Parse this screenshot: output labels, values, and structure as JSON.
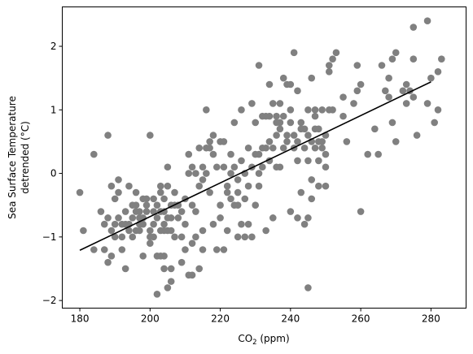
{
  "chart_data": {
    "type": "scatter",
    "title": "",
    "xlabel": "CO",
    "xlabel_sub": "2",
    "xlabel_suffix": " (ppm)",
    "ylabel_line1": "Sea Surface Temperature",
    "ylabel_line2": "detrended (°C)",
    "xlim": [
      175,
      290
    ],
    "ylim": [
      -2.12,
      2.62
    ],
    "xticks": [
      180,
      200,
      220,
      240,
      260,
      280
    ],
    "yticks": [
      -2,
      -1,
      0,
      1,
      2
    ],
    "grid": false,
    "point_color": "#808080",
    "line_color": "#000000",
    "trend_line": {
      "x": [
        180,
        280
      ],
      "y": [
        -1.21,
        1.44
      ]
    },
    "points": [
      [
        180,
        -0.3
      ],
      [
        181,
        -0.9
      ],
      [
        184,
        0.3
      ],
      [
        184,
        -1.2
      ],
      [
        186,
        -0.6
      ],
      [
        187,
        -0.8
      ],
      [
        187,
        -1.2
      ],
      [
        188,
        -0.7
      ],
      [
        188,
        -1.4
      ],
      [
        188,
        0.6
      ],
      [
        189,
        -0.9
      ],
      [
        189,
        -0.2
      ],
      [
        189,
        -1.3
      ],
      [
        190,
        -1.0
      ],
      [
        190,
        -0.4
      ],
      [
        190,
        -0.8
      ],
      [
        191,
        -0.1
      ],
      [
        191,
        -0.7
      ],
      [
        191,
        -0.3
      ],
      [
        192,
        -0.8
      ],
      [
        192,
        -1.0
      ],
      [
        192,
        -1.2
      ],
      [
        193,
        -0.6
      ],
      [
        193,
        -1.5
      ],
      [
        193,
        -0.8
      ],
      [
        194,
        -0.9
      ],
      [
        194,
        -0.8
      ],
      [
        194,
        -0.2
      ],
      [
        195,
        -0.7
      ],
      [
        195,
        -0.5
      ],
      [
        195,
        -1.0
      ],
      [
        196,
        -0.5
      ],
      [
        196,
        -0.6
      ],
      [
        196,
        -0.9
      ],
      [
        196,
        -0.3
      ],
      [
        197,
        -0.8
      ],
      [
        197,
        -0.6
      ],
      [
        197,
        -0.9
      ],
      [
        197,
        -0.7
      ],
      [
        198,
        -1.3
      ],
      [
        198,
        -0.4
      ],
      [
        198,
        -0.8
      ],
      [
        198,
        -0.7
      ],
      [
        199,
        -0.5
      ],
      [
        199,
        -0.6
      ],
      [
        199,
        -0.4
      ],
      [
        200,
        -1.0
      ],
      [
        200,
        -1.1
      ],
      [
        200,
        0.6
      ],
      [
        200,
        -0.9
      ],
      [
        201,
        -1.0
      ],
      [
        201,
        -0.8
      ],
      [
        201,
        -0.4
      ],
      [
        201,
        -0.6
      ],
      [
        202,
        -1.9
      ],
      [
        202,
        -1.3
      ],
      [
        202,
        -0.7
      ],
      [
        202,
        -0.5
      ],
      [
        203,
        -1.3
      ],
      [
        203,
        -0.3
      ],
      [
        203,
        -0.9
      ],
      [
        203,
        -0.2
      ],
      [
        203,
        -0.6
      ],
      [
        204,
        -1.5
      ],
      [
        204,
        -1.3
      ],
      [
        204,
        -0.8
      ],
      [
        204,
        -0.9
      ],
      [
        204,
        -0.4
      ],
      [
        204,
        -0.6
      ],
      [
        205,
        0.1
      ],
      [
        205,
        -1.8
      ],
      [
        205,
        -0.7
      ],
      [
        205,
        -0.9
      ],
      [
        205,
        -0.2
      ],
      [
        206,
        -1.7
      ],
      [
        206,
        -1.5
      ],
      [
        206,
        -0.7
      ],
      [
        206,
        -0.9
      ],
      [
        206,
        -0.5
      ],
      [
        207,
        -1.0
      ],
      [
        207,
        -0.5
      ],
      [
        207,
        -0.3
      ],
      [
        208,
        -0.5
      ],
      [
        208,
        -0.7
      ],
      [
        209,
        -1.0
      ],
      [
        209,
        -1.4
      ],
      [
        209,
        -0.6
      ],
      [
        210,
        -1.2
      ],
      [
        210,
        -0.8
      ],
      [
        210,
        -0.4
      ],
      [
        211,
        -1.6
      ],
      [
        211,
        0.0
      ],
      [
        211,
        0.3
      ],
      [
        212,
        -1.6
      ],
      [
        212,
        -1.1
      ],
      [
        212,
        -0.5
      ],
      [
        212,
        0.1
      ],
      [
        213,
        -1.0
      ],
      [
        213,
        -0.6
      ],
      [
        213,
        0.0
      ],
      [
        214,
        -1.5
      ],
      [
        214,
        0.4
      ],
      [
        214,
        -0.2
      ],
      [
        215,
        -0.1
      ],
      [
        215,
        -1.2
      ],
      [
        215,
        -0.9
      ],
      [
        215,
        0.1
      ],
      [
        216,
        0.4
      ],
      [
        216,
        1.0
      ],
      [
        216,
        0.0
      ],
      [
        217,
        0.4
      ],
      [
        217,
        0.5
      ],
      [
        217,
        -0.3
      ],
      [
        218,
        0.6
      ],
      [
        218,
        -0.8
      ],
      [
        218,
        0.3
      ],
      [
        219,
        0.1
      ],
      [
        219,
        -1.2
      ],
      [
        220,
        -0.7
      ],
      [
        220,
        0.5
      ],
      [
        220,
        -0.5
      ],
      [
        221,
        -1.2
      ],
      [
        221,
        0.5
      ],
      [
        221,
        0.1
      ],
      [
        222,
        -0.3
      ],
      [
        222,
        -0.9
      ],
      [
        222,
        -0.2
      ],
      [
        223,
        0.3
      ],
      [
        223,
        0.0
      ],
      [
        223,
        -0.4
      ],
      [
        224,
        0.8
      ],
      [
        224,
        -0.5
      ],
      [
        224,
        0.1
      ],
      [
        225,
        -1.0
      ],
      [
        225,
        -0.5
      ],
      [
        225,
        -0.3
      ],
      [
        225,
        -0.1
      ],
      [
        226,
        -0.8
      ],
      [
        226,
        0.2
      ],
      [
        226,
        1.0
      ],
      [
        227,
        -1.0
      ],
      [
        227,
        -0.4
      ],
      [
        227,
        0.0
      ],
      [
        228,
        -0.8
      ],
      [
        228,
        0.4
      ],
      [
        228,
        -0.2
      ],
      [
        229,
        1.1
      ],
      [
        229,
        -1.0
      ],
      [
        229,
        0.1
      ],
      [
        230,
        0.3
      ],
      [
        230,
        0.8
      ],
      [
        230,
        -0.5
      ],
      [
        231,
        0.3
      ],
      [
        231,
        1.7
      ],
      [
        231,
        -0.2
      ],
      [
        231,
        0.0
      ],
      [
        232,
        0.4
      ],
      [
        232,
        0.1
      ],
      [
        232,
        0.9
      ],
      [
        233,
        0.4
      ],
      [
        233,
        0.9
      ],
      [
        233,
        -0.9
      ],
      [
        234,
        1.4
      ],
      [
        234,
        0.5
      ],
      [
        234,
        0.9
      ],
      [
        234,
        0.2
      ],
      [
        235,
        0.4
      ],
      [
        235,
        1.1
      ],
      [
        235,
        -0.7
      ],
      [
        236,
        0.1
      ],
      [
        236,
        0.8
      ],
      [
        236,
        0.9
      ],
      [
        236,
        0.6
      ],
      [
        237,
        1.1
      ],
      [
        237,
        0.1
      ],
      [
        237,
        0.7
      ],
      [
        237,
        0.8
      ],
      [
        238,
        1.5
      ],
      [
        238,
        0.4
      ],
      [
        238,
        0.9
      ],
      [
        239,
        1.4
      ],
      [
        239,
        0.5
      ],
      [
        239,
        0.6
      ],
      [
        240,
        -0.6
      ],
      [
        240,
        1.0
      ],
      [
        240,
        0.8
      ],
      [
        240,
        1.4
      ],
      [
        241,
        1.9
      ],
      [
        241,
        0.6
      ],
      [
        241,
        0.4
      ],
      [
        242,
        -0.7
      ],
      [
        242,
        0.2
      ],
      [
        242,
        1.3
      ],
      [
        242,
        0.5
      ],
      [
        243,
        0.8
      ],
      [
        243,
        -0.3
      ],
      [
        243,
        0.7
      ],
      [
        244,
        0.4
      ],
      [
        244,
        -0.8
      ],
      [
        244,
        0.7
      ],
      [
        245,
        1.0
      ],
      [
        245,
        -0.7
      ],
      [
        245,
        0.2
      ],
      [
        245,
        0.6
      ],
      [
        245,
        -1.8
      ],
      [
        246,
        -0.1
      ],
      [
        246,
        0.5
      ],
      [
        246,
        -0.4
      ],
      [
        246,
        1.5
      ],
      [
        247,
        0.7
      ],
      [
        247,
        0.4
      ],
      [
        247,
        1.0
      ],
      [
        247,
        0.9
      ],
      [
        248,
        0.2
      ],
      [
        248,
        0.5
      ],
      [
        248,
        -0.2
      ],
      [
        248,
        0.7
      ],
      [
        249,
        1.0
      ],
      [
        249,
        0.5
      ],
      [
        249,
        0.4
      ],
      [
        250,
        0.6
      ],
      [
        250,
        0.3
      ],
      [
        250,
        -0.2
      ],
      [
        250,
        0.1
      ],
      [
        251,
        1.6
      ],
      [
        251,
        1.7
      ],
      [
        251,
        1.0
      ],
      [
        252,
        1.0
      ],
      [
        252,
        1.8
      ],
      [
        253,
        1.9
      ],
      [
        255,
        1.2
      ],
      [
        255,
        0.9
      ],
      [
        256,
        0.5
      ],
      [
        258,
        1.1
      ],
      [
        259,
        1.7
      ],
      [
        259,
        1.3
      ],
      [
        260,
        -0.6
      ],
      [
        260,
        1.4
      ],
      [
        262,
        0.3
      ],
      [
        264,
        0.7
      ],
      [
        265,
        0.3
      ],
      [
        266,
        1.7
      ],
      [
        267,
        1.3
      ],
      [
        268,
        1.2
      ],
      [
        268,
        1.5
      ],
      [
        269,
        1.8
      ],
      [
        269,
        0.8
      ],
      [
        270,
        0.5
      ],
      [
        270,
        1.9
      ],
      [
        272,
        1.3
      ],
      [
        273,
        1.4
      ],
      [
        273,
        1.1
      ],
      [
        274,
        1.3
      ],
      [
        275,
        1.8
      ],
      [
        275,
        1.2
      ],
      [
        275,
        2.3
      ],
      [
        276,
        0.6
      ],
      [
        279,
        2.4
      ],
      [
        279,
        1.1
      ],
      [
        280,
        1.5
      ],
      [
        281,
        0.8
      ],
      [
        282,
        1.0
      ],
      [
        282,
        1.6
      ],
      [
        283,
        1.8
      ]
    ]
  }
}
